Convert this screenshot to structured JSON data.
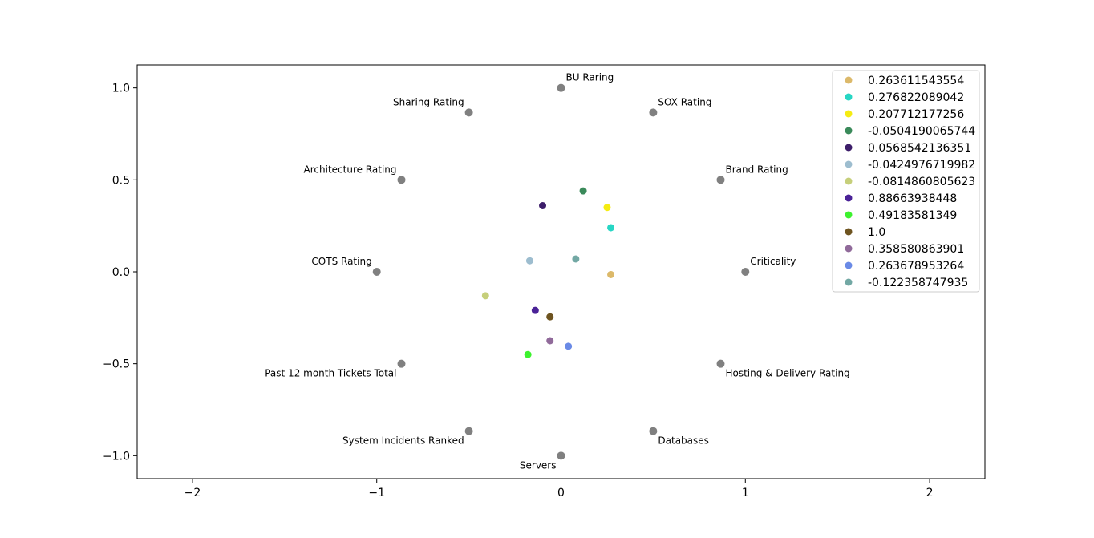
{
  "chart_data": {
    "type": "scatter",
    "title": "",
    "xlabel": "",
    "ylabel": "",
    "xlim": [
      -2.3,
      2.3
    ],
    "ylim": [
      -1.125,
      1.125
    ],
    "xticks": [
      -2,
      -1,
      0,
      1,
      2
    ],
    "yticks": [
      1.0,
      0.5,
      0.0,
      -0.5,
      -1.0
    ],
    "xtick_labels": [
      "−2",
      "−1",
      "0",
      "1",
      "2"
    ],
    "ytick_labels": [
      "1.0",
      "0.5",
      "0.0",
      "−0.5",
      "−1.0"
    ],
    "grid": false,
    "legend_position": "upper-right",
    "anchor_color": "#808080",
    "anchors": [
      {
        "label": "BU Raring",
        "x": 0.0,
        "y": 1.0,
        "label_side": "right-above"
      },
      {
        "label": "SOX Rating",
        "x": 0.5,
        "y": 0.866,
        "label_side": "right-above"
      },
      {
        "label": "Brand Rating",
        "x": 0.866,
        "y": 0.5,
        "label_side": "right-above"
      },
      {
        "label": "Criticality",
        "x": 1.0,
        "y": 0.0,
        "label_side": "right-above"
      },
      {
        "label": "Hosting & Delivery Rating",
        "x": 0.866,
        "y": -0.5,
        "label_side": "right-below"
      },
      {
        "label": "Databases",
        "x": 0.5,
        "y": -0.866,
        "label_side": "right-below"
      },
      {
        "label": "Servers",
        "x": 0.0,
        "y": -1.0,
        "label_side": "left-below"
      },
      {
        "label": "System Incidents Ranked",
        "x": -0.5,
        "y": -0.866,
        "label_side": "left-below"
      },
      {
        "label": "Past 12 month Tickets Total",
        "x": -0.866,
        "y": -0.5,
        "label_side": "left-below"
      },
      {
        "label": "COTS Rating",
        "x": -1.0,
        "y": 0.0,
        "label_side": "left-above"
      },
      {
        "label": "Architecture Rating",
        "x": -0.866,
        "y": 0.5,
        "label_side": "left-above"
      },
      {
        "label": "Sharing Rating",
        "x": -0.5,
        "y": 0.866,
        "label_side": "left-above"
      }
    ],
    "series": [
      {
        "name": "0.263611543554",
        "color": "#dcb96a",
        "x": 0.27,
        "y": -0.015
      },
      {
        "name": "0.276822089042",
        "color": "#27d6c4",
        "x": 0.27,
        "y": 0.24
      },
      {
        "name": "0.207712177256",
        "color": "#f5ec12",
        "x": 0.25,
        "y": 0.35
      },
      {
        "name": "-0.0504190065744",
        "color": "#3a8a5a",
        "x": 0.12,
        "y": 0.44
      },
      {
        "name": "0.0568542136351",
        "color": "#3d1e6a",
        "x": -0.1,
        "y": 0.36
      },
      {
        "name": "-0.0424976719982",
        "color": "#9dbdcf",
        "x": -0.17,
        "y": 0.06
      },
      {
        "name": "-0.0814860805623",
        "color": "#c6cf7a",
        "x": -0.41,
        "y": -0.13
      },
      {
        "name": "0.88663938448",
        "color": "#4a2297",
        "x": -0.14,
        "y": -0.21
      },
      {
        "name": "0.49183581349",
        "color": "#3df22e",
        "x": -0.18,
        "y": -0.45
      },
      {
        "name": "1.0",
        "color": "#6e5420",
        "x": -0.06,
        "y": -0.245
      },
      {
        "name": "0.358580863901",
        "color": "#906a9a",
        "x": -0.06,
        "y": -0.375
      },
      {
        "name": "0.263678953264",
        "color": "#6a8ae6",
        "x": 0.04,
        "y": -0.405
      },
      {
        "name": "-0.122358747935",
        "color": "#72a8a4",
        "x": 0.08,
        "y": 0.07
      }
    ]
  }
}
